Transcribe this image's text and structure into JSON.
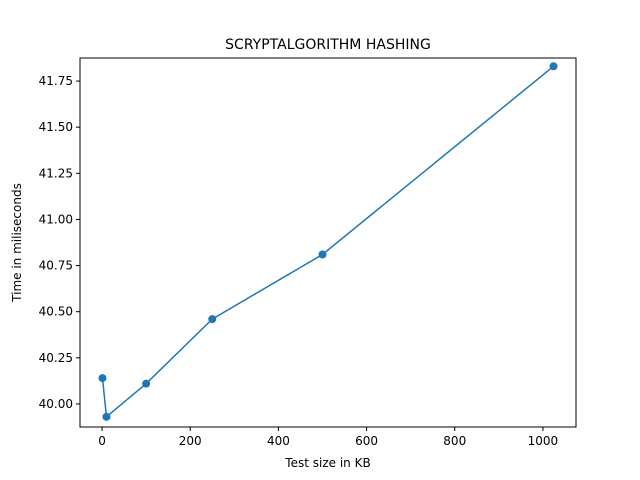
{
  "chart_data": {
    "type": "line",
    "title": "SCRYPTALGORITHM HASHING",
    "xlabel": "Test size in KB",
    "ylabel": "Time in miliseconds",
    "xlim": [
      -50,
      1075
    ],
    "ylim": [
      39.875,
      41.875
    ],
    "xticks": [
      0,
      200,
      400,
      600,
      800,
      1000
    ],
    "yticks": [
      40.0,
      40.25,
      40.5,
      40.75,
      41.0,
      41.25,
      41.5,
      41.75
    ],
    "ytick_labels": [
      "40.00",
      "40.25",
      "40.50",
      "40.75",
      "41.00",
      "41.25",
      "41.50",
      "41.75"
    ],
    "grid": false,
    "series": [
      {
        "color": "#1f77b4",
        "marker": "circle",
        "x": [
          1,
          10,
          100,
          250,
          500,
          1024
        ],
        "y": [
          40.14,
          39.93,
          40.11,
          40.46,
          40.81,
          41.83
        ]
      }
    ]
  }
}
